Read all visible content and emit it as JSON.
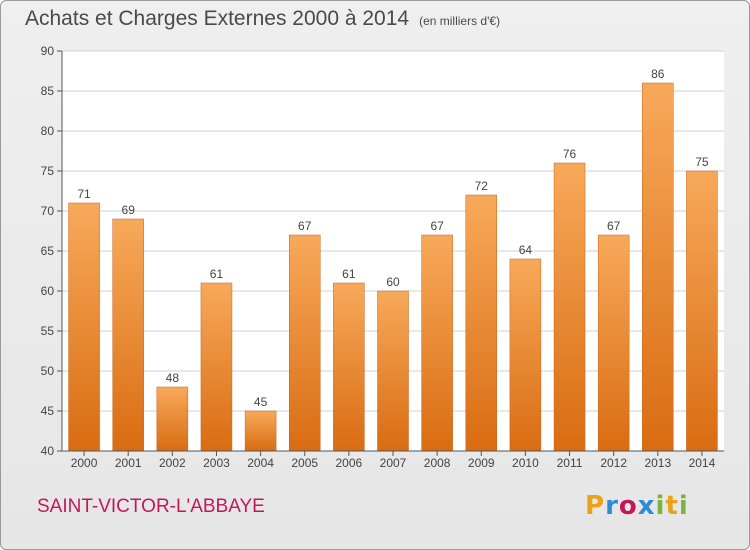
{
  "header": {
    "title": "Achats et Charges Externes 2000 à 2014",
    "units": "(en milliers d'€)"
  },
  "footer": {
    "commune": "SAINT-VICTOR-L'ABBAYE",
    "logo": {
      "letters": [
        "P",
        "r",
        "o",
        "x",
        "i",
        "t",
        "i"
      ],
      "colors": [
        "#e8a317",
        "#2e8bd6",
        "#c2185b",
        "#2e8bd6",
        "#7cb342",
        "#e8a317",
        "#7cb342"
      ]
    }
  },
  "chart_data": {
    "type": "bar",
    "categories": [
      "2000",
      "2001",
      "2002",
      "2003",
      "2004",
      "2005",
      "2006",
      "2007",
      "2008",
      "2009",
      "2010",
      "2011",
      "2012",
      "2013",
      "2014"
    ],
    "values": [
      71,
      69,
      48,
      61,
      45,
      67,
      61,
      60,
      67,
      72,
      64,
      76,
      67,
      86,
      75
    ],
    "title": "Achats et Charges Externes 2000 à 2014",
    "subtitle": "(en milliers d'€)",
    "xlabel": "",
    "ylabel": "",
    "ylim": [
      40,
      90
    ],
    "yticks": [
      40,
      45,
      50,
      55,
      60,
      65,
      70,
      75,
      80,
      85,
      90
    ],
    "grid": true,
    "bar_color": "#f08c28",
    "data_labels": true
  }
}
